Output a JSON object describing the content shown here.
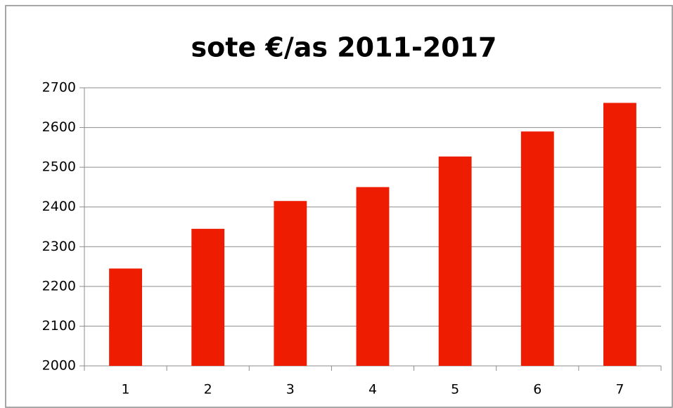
{
  "chart_data": {
    "type": "bar",
    "title": "sote €/as 2011-2017",
    "categories": [
      "1",
      "2",
      "3",
      "4",
      "5",
      "6",
      "7"
    ],
    "values": [
      2245,
      2345,
      2415,
      2450,
      2527,
      2590,
      2662
    ],
    "color": "#ee1c00",
    "ylim": [
      2000,
      2700
    ],
    "yticks": [
      2000,
      2100,
      2200,
      2300,
      2400,
      2500,
      2600,
      2700
    ],
    "grid": true
  }
}
